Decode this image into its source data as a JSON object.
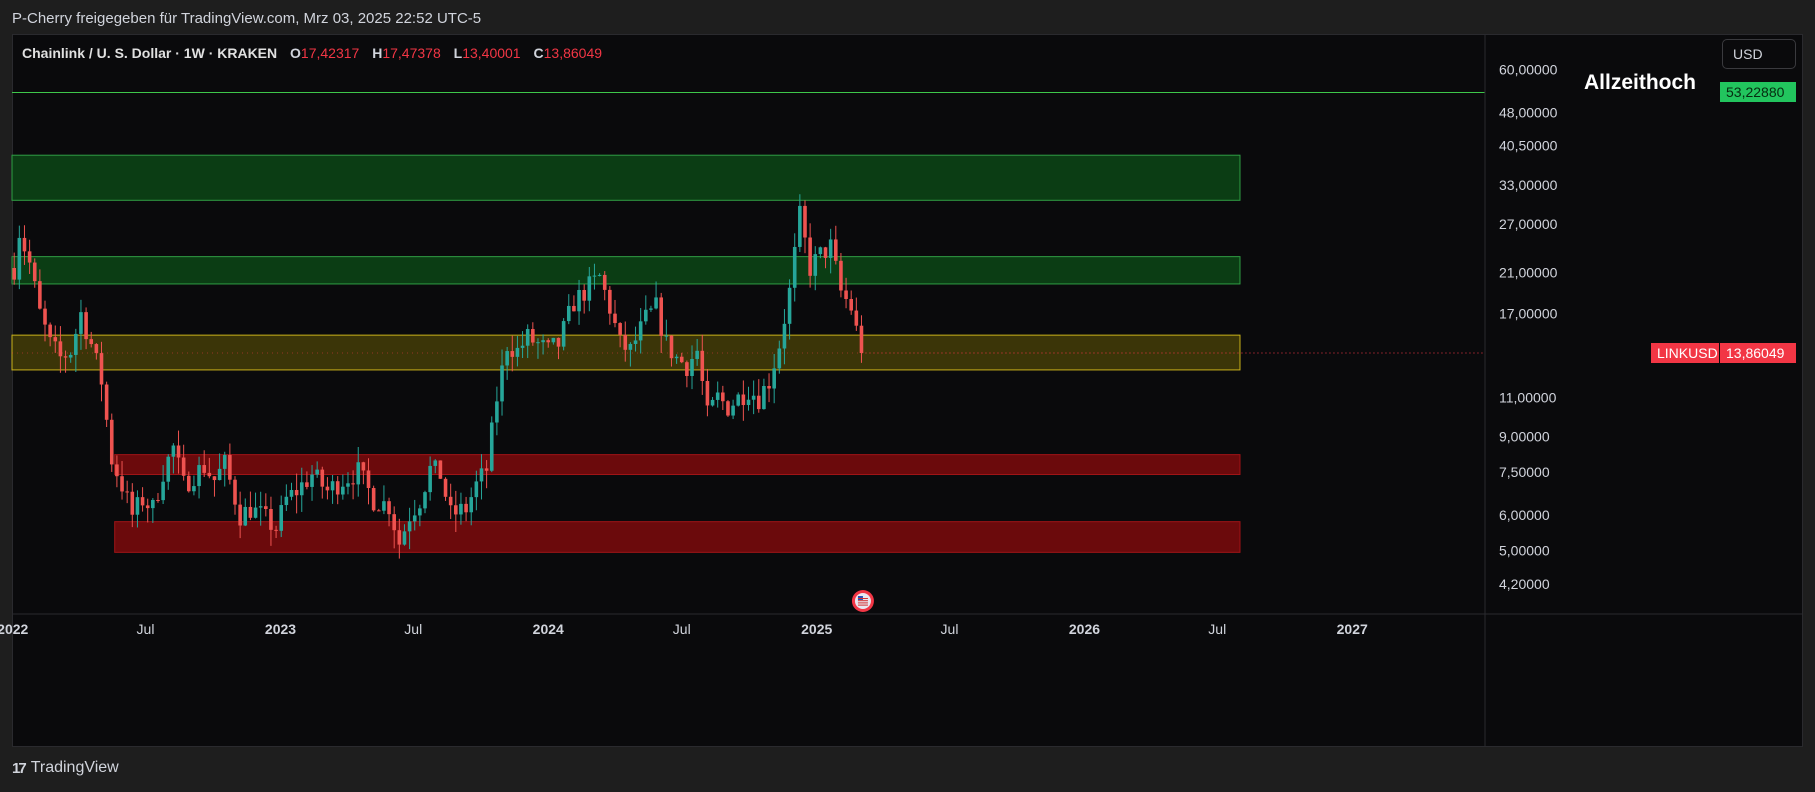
{
  "header": {
    "share_text": "P-Cherry freigegeben für TradingView.com, Mrz 03, 2025 22:52 UTC-5"
  },
  "legend": {
    "symbol_text": "Chainlink / U. S. Dollar · 1W · KRAKEN",
    "open_key": "O",
    "open": "17,42317",
    "high_key": "H",
    "high": "17,47378",
    "low_key": "L",
    "low": "13,40001",
    "close_key": "C",
    "close": "13,86049"
  },
  "toolbar": {
    "currency_button": "USD"
  },
  "annotations": {
    "ath_label": "Allzeithoch"
  },
  "price_tags": {
    "ath_value": "53,22880",
    "symbol_label": "LINKUSD",
    "last_value": "13,86049"
  },
  "footer": {
    "brand": "TradingView",
    "brand_mark": "17"
  },
  "colors": {
    "up": "#26a69a",
    "down": "#ef5350",
    "green_zone": "#0b3d14",
    "yellow_zone": "#3b3508",
    "red_zone": "#6b0a0c",
    "ath_line": "#3ec74a"
  },
  "chart_data": {
    "type": "candlestick",
    "symbol": "LINKUSD",
    "exchange": "KRAKEN",
    "interval": "1W",
    "scale": "log",
    "y_range": [
      3.6,
      72
    ],
    "x_range": [
      "2021-12-31",
      "2027-07-01"
    ],
    "y_ticks": [
      {
        "value": 60,
        "label": "60,00000"
      },
      {
        "value": 48,
        "label": "48,00000"
      },
      {
        "value": 40.5,
        "label": "40,50000"
      },
      {
        "value": 33,
        "label": "33,00000"
      },
      {
        "value": 27,
        "label": "27,00000"
      },
      {
        "value": 21,
        "label": "21,00000"
      },
      {
        "value": 17,
        "label": "17,00000"
      },
      {
        "value": 11,
        "label": "11,00000"
      },
      {
        "value": 9,
        "label": "9,00000"
      },
      {
        "value": 7.5,
        "label": "7,50000"
      },
      {
        "value": 6,
        "label": "6,00000"
      },
      {
        "value": 5,
        "label": "5,00000"
      },
      {
        "value": 4.2,
        "label": "4,20000"
      }
    ],
    "x_ticks": [
      {
        "date": "2022-01-01",
        "label": "2022",
        "bold": true
      },
      {
        "date": "2022-07-01",
        "label": "Jul",
        "bold": false
      },
      {
        "date": "2023-01-01",
        "label": "2023",
        "bold": true
      },
      {
        "date": "2023-07-01",
        "label": "Jul",
        "bold": false
      },
      {
        "date": "2024-01-01",
        "label": "2024",
        "bold": true
      },
      {
        "date": "2024-07-01",
        "label": "Jul",
        "bold": false
      },
      {
        "date": "2025-01-01",
        "label": "2025",
        "bold": true
      },
      {
        "date": "2025-07-01",
        "label": "Jul",
        "bold": false
      },
      {
        "date": "2026-01-01",
        "label": "2026",
        "bold": true
      },
      {
        "date": "2026-07-01",
        "label": "Jul",
        "bold": false
      },
      {
        "date": "2027-01-01",
        "label": "2027",
        "bold": true
      }
    ],
    "ath_line": 53.2288,
    "last_price": 13.86049,
    "zones": [
      {
        "kind": "green",
        "from": "2021-12-31",
        "to": "2026-08-01",
        "low": 30.5,
        "high": 38.5
      },
      {
        "kind": "green",
        "from": "2021-12-31",
        "to": "2026-08-01",
        "low": 19.8,
        "high": 22.8
      },
      {
        "kind": "yellow",
        "from": "2021-12-31",
        "to": "2026-08-01",
        "low": 12.7,
        "high": 15.2
      },
      {
        "kind": "red",
        "from": "2022-05-20",
        "to": "2026-08-01",
        "low": 7.4,
        "high": 8.2
      },
      {
        "kind": "red",
        "from": "2022-05-20",
        "to": "2026-08-01",
        "low": 4.95,
        "high": 5.8
      }
    ],
    "event_marker_date": "2025-03-05",
    "candle_anchors": [
      [
        "2022-01-03",
        21.5
      ],
      [
        "2022-01-10",
        26.0
      ],
      [
        "2022-01-24",
        22.0
      ],
      [
        "2022-02-07",
        17.0
      ],
      [
        "2022-02-21",
        14.5
      ],
      [
        "2022-03-07",
        13.5
      ],
      [
        "2022-03-21",
        14.0
      ],
      [
        "2022-04-04",
        17.0
      ],
      [
        "2022-04-18",
        14.5
      ],
      [
        "2022-05-02",
        12.0
      ],
      [
        "2022-05-16",
        8.0
      ],
      [
        "2022-05-30",
        7.0
      ],
      [
        "2022-06-13",
        6.0
      ],
      [
        "2022-06-27",
        6.5
      ],
      [
        "2022-07-11",
        6.2
      ],
      [
        "2022-07-25",
        7.5
      ],
      [
        "2022-08-08",
        8.5
      ],
      [
        "2022-08-22",
        7.0
      ],
      [
        "2022-09-05",
        7.4
      ],
      [
        "2022-09-19",
        7.7
      ],
      [
        "2022-10-03",
        7.2
      ],
      [
        "2022-10-17",
        7.8
      ],
      [
        "2022-11-07",
        6.0
      ],
      [
        "2022-11-21",
        6.2
      ],
      [
        "2022-12-05",
        6.0
      ],
      [
        "2022-12-26",
        5.6
      ],
      [
        "2023-01-09",
        6.5
      ],
      [
        "2023-01-23",
        6.8
      ],
      [
        "2023-02-13",
        7.4
      ],
      [
        "2023-03-06",
        6.8
      ],
      [
        "2023-03-27",
        7.2
      ],
      [
        "2023-04-17",
        7.5
      ],
      [
        "2023-05-08",
        6.5
      ],
      [
        "2023-05-29",
        6.3
      ],
      [
        "2023-06-12",
        5.2
      ],
      [
        "2023-06-26",
        6.0
      ],
      [
        "2023-07-10",
        6.5
      ],
      [
        "2023-07-24",
        7.6
      ],
      [
        "2023-08-07",
        7.4
      ],
      [
        "2023-08-21",
        6.0
      ],
      [
        "2023-09-11",
        6.2
      ],
      [
        "2023-09-25",
        7.0
      ],
      [
        "2023-10-09",
        7.6
      ],
      [
        "2023-10-23",
        11.0
      ],
      [
        "2023-11-06",
        14.5
      ],
      [
        "2023-11-20",
        14.0
      ],
      [
        "2023-12-04",
        15.0
      ],
      [
        "2023-12-18",
        14.5
      ],
      [
        "2024-01-01",
        14.0
      ],
      [
        "2024-01-15",
        14.5
      ],
      [
        "2024-02-05",
        18.0
      ],
      [
        "2024-02-26",
        19.5
      ],
      [
        "2024-03-11",
        20.5
      ],
      [
        "2024-03-25",
        17.5
      ],
      [
        "2024-04-08",
        14.5
      ],
      [
        "2024-04-22",
        14.0
      ],
      [
        "2024-05-13",
        16.5
      ],
      [
        "2024-05-27",
        17.5
      ],
      [
        "2024-06-10",
        14.5
      ],
      [
        "2024-06-24",
        13.5
      ],
      [
        "2024-07-08",
        13.0
      ],
      [
        "2024-07-22",
        14.0
      ],
      [
        "2024-08-05",
        10.0
      ],
      [
        "2024-08-19",
        11.0
      ],
      [
        "2024-09-02",
        10.5
      ],
      [
        "2024-09-16",
        11.0
      ],
      [
        "2024-09-30",
        11.5
      ],
      [
        "2024-10-14",
        11.0
      ],
      [
        "2024-10-28",
        12.0
      ],
      [
        "2024-11-11",
        14.5
      ],
      [
        "2024-11-25",
        19.0
      ],
      [
        "2024-12-09",
        28.0
      ],
      [
        "2024-12-23",
        21.5
      ],
      [
        "2025-01-06",
        23.0
      ],
      [
        "2025-01-20",
        24.0
      ],
      [
        "2025-02-03",
        19.0
      ],
      [
        "2025-02-17",
        17.5
      ],
      [
        "2025-03-03",
        13.86
      ]
    ]
  }
}
